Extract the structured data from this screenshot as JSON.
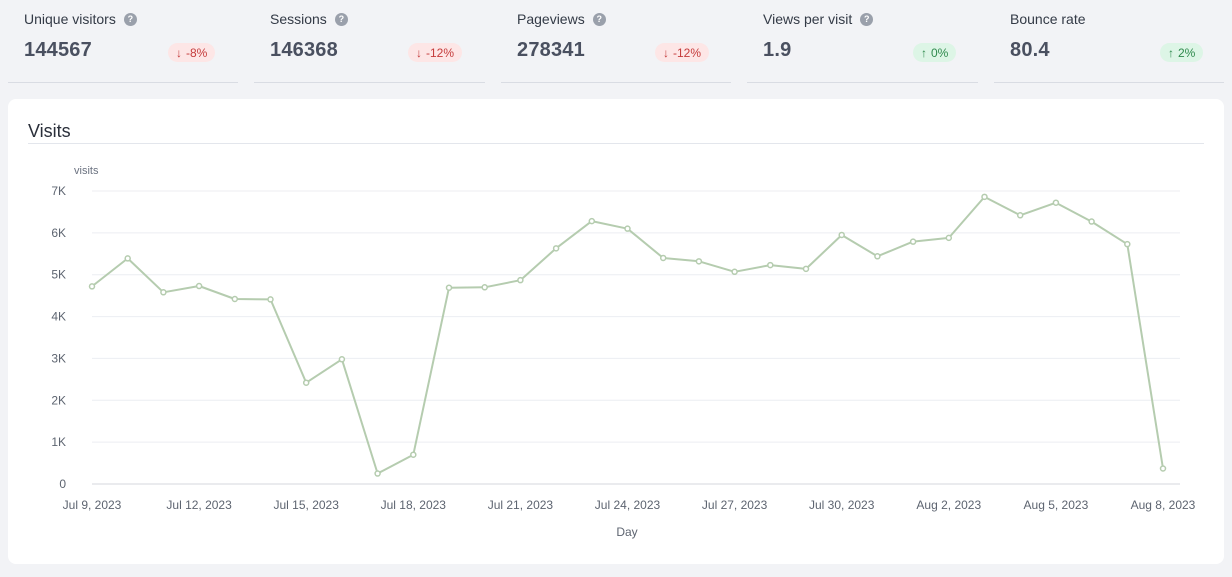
{
  "metrics": [
    {
      "label": "Unique visitors",
      "value": "144567",
      "change": "-8%",
      "direction": "down"
    },
    {
      "label": "Sessions",
      "value": "146368",
      "change": "-12%",
      "direction": "down"
    },
    {
      "label": "Pageviews",
      "value": "278341",
      "change": "-12%",
      "direction": "down"
    },
    {
      "label": "Views per visit",
      "value": "1.9",
      "change": "0%",
      "direction": "up"
    },
    {
      "label": "Bounce rate",
      "value": "80.4",
      "change": "2%",
      "direction": "up"
    }
  ],
  "icons": {
    "help": "question-circle-icon",
    "down": "arrow-down-icon",
    "up": "arrow-up-icon"
  },
  "colors": {
    "line": "#b5ccaf",
    "negative": "#c53b3b",
    "positive": "#2f8a4d"
  },
  "card": {
    "title": "Visits"
  },
  "chart_data": {
    "type": "line",
    "title": "",
    "ylabel": "visits",
    "xlabel": "Day",
    "ylim": [
      0,
      7000
    ],
    "yticks": [
      0,
      1000,
      2000,
      3000,
      4000,
      5000,
      6000,
      7000
    ],
    "ytick_labels": [
      "0",
      "1K",
      "2K",
      "3K",
      "4K",
      "5K",
      "6K",
      "7K"
    ],
    "xtick_labels": [
      "Jul 9, 2023",
      "Jul 12, 2023",
      "Jul 15, 2023",
      "Jul 18, 2023",
      "Jul 21, 2023",
      "Jul 24, 2023",
      "Jul 27, 2023",
      "Jul 30, 2023",
      "Aug 2, 2023",
      "Aug 5, 2023",
      "Aug 8, 2023"
    ],
    "x": [
      "Jul 9, 2023",
      "Jul 10, 2023",
      "Jul 11, 2023",
      "Jul 12, 2023",
      "Jul 13, 2023",
      "Jul 14, 2023",
      "Jul 15, 2023",
      "Jul 16, 2023",
      "Jul 17, 2023",
      "Jul 18, 2023",
      "Jul 19, 2023",
      "Jul 20, 2023",
      "Jul 21, 2023",
      "Jul 22, 2023",
      "Jul 23, 2023",
      "Jul 24, 2023",
      "Jul 25, 2023",
      "Jul 26, 2023",
      "Jul 27, 2023",
      "Jul 28, 2023",
      "Jul 29, 2023",
      "Jul 30, 2023",
      "Jul 31, 2023",
      "Aug 1, 2023",
      "Aug 2, 2023",
      "Aug 3, 2023",
      "Aug 4, 2023",
      "Aug 5, 2023",
      "Aug 6, 2023",
      "Aug 7, 2023",
      "Aug 8, 2023"
    ],
    "series": [
      {
        "values": [
          4720,
          5390,
          4580,
          4730,
          4420,
          4410,
          2420,
          2980,
          250,
          700,
          4690,
          4700,
          4870,
          5630,
          6280,
          6100,
          5400,
          5320,
          5070,
          5230,
          5140,
          5950,
          5440,
          5790,
          5880,
          6860,
          6420,
          6720,
          6270,
          5730,
          370
        ]
      }
    ],
    "grid": true,
    "legend": "none"
  }
}
